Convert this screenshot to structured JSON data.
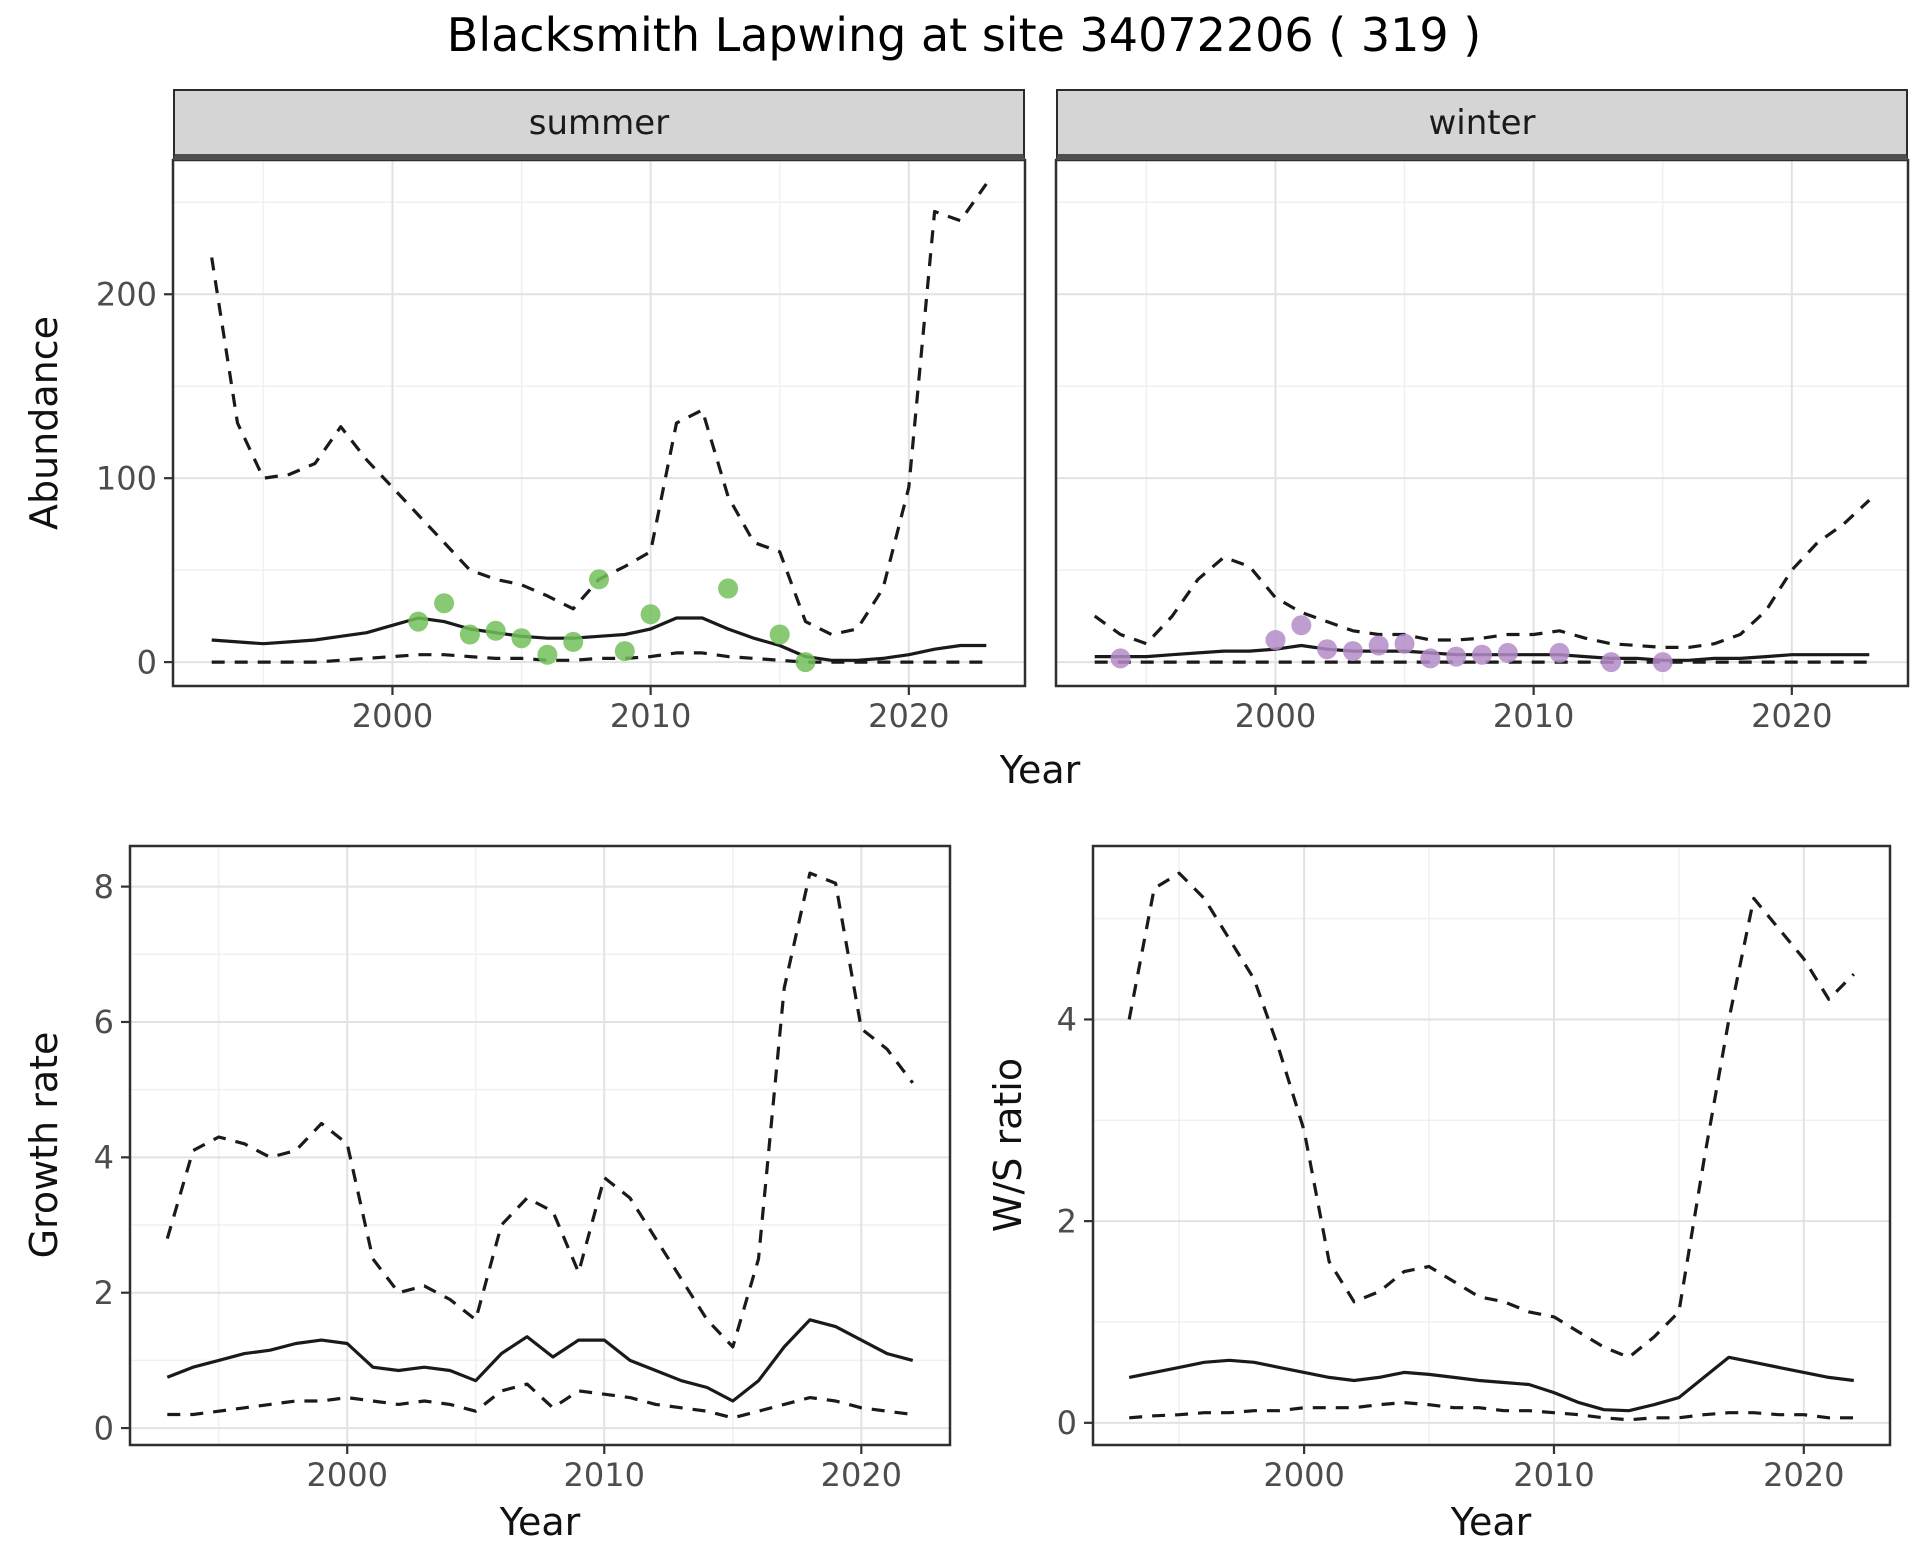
{
  "title": "Blacksmith Lapwing at site 34072206 ( 319 )",
  "colors": {
    "line": "#1a1a1a",
    "summer_points": "#73c05b",
    "winter_points": "#b48cc8",
    "strip_bg": "#d5d5d5",
    "panel_border": "#2f2f2f",
    "grid_major": "#e2e2e2",
    "grid_minor": "#f0f0f0",
    "tick_text": "#4d4d4d"
  },
  "chart_data": [
    {
      "id": "summer-abundance",
      "type": "line",
      "strip_label": "summer",
      "ylabel": "Abundance",
      "xlabel": "Year",
      "xlim": [
        1991.5,
        2024.5
      ],
      "ylim": [
        -13,
        273
      ],
      "xticks": [
        2000,
        2010,
        2020
      ],
      "yticks": [
        0,
        100,
        200
      ],
      "x": [
        1993,
        1994,
        1995,
        1996,
        1997,
        1998,
        1999,
        2000,
        2001,
        2002,
        2003,
        2004,
        2005,
        2006,
        2007,
        2008,
        2009,
        2010,
        2011,
        2012,
        2013,
        2014,
        2015,
        2016,
        2017,
        2018,
        2019,
        2020,
        2021,
        2022,
        2023
      ],
      "series": [
        {
          "name": "upper-ci",
          "dash": true,
          "values": [
            220,
            130,
            100,
            102,
            108,
            128,
            110,
            95,
            80,
            65,
            50,
            45,
            42,
            36,
            29,
            45,
            52,
            60,
            130,
            137,
            90,
            65,
            60,
            22,
            15,
            18,
            40,
            95,
            245,
            240,
            260
          ]
        },
        {
          "name": "median",
          "dash": false,
          "values": [
            12,
            11,
            10,
            11,
            12,
            14,
            16,
            20,
            24,
            22,
            18,
            16,
            14,
            13,
            13,
            14,
            15,
            18,
            24,
            24,
            18,
            13,
            9,
            3,
            1,
            1,
            2,
            4,
            7,
            9,
            9
          ]
        },
        {
          "name": "lower-ci",
          "dash": true,
          "values": [
            0,
            0,
            0,
            0,
            0,
            1,
            2,
            3,
            4,
            4,
            3,
            2,
            2,
            1,
            1,
            2,
            2,
            3,
            5,
            5,
            3,
            2,
            1,
            0,
            0,
            0,
            0,
            0,
            0,
            0,
            0
          ]
        }
      ],
      "points": {
        "name": "observed-summer-point",
        "color": "#73c05b",
        "x": [
          2001,
          2002,
          2003,
          2004,
          2005,
          2006,
          2007,
          2008,
          2009,
          2010,
          2013,
          2015,
          2016
        ],
        "y": [
          22,
          32,
          15,
          17,
          13,
          4,
          11,
          45,
          6,
          26,
          40,
          15,
          0
        ]
      }
    },
    {
      "id": "winter-abundance",
      "type": "line",
      "strip_label": "winter",
      "ylabel": "Abundance",
      "xlabel": "Year",
      "xlim": [
        1991.5,
        2024.5
      ],
      "ylim": [
        -13,
        273
      ],
      "xticks": [
        2000,
        2010,
        2020
      ],
      "yticks": [
        0,
        100,
        200
      ],
      "x": [
        1993,
        1994,
        1995,
        1996,
        1997,
        1998,
        1999,
        2000,
        2001,
        2002,
        2003,
        2004,
        2005,
        2006,
        2007,
        2008,
        2009,
        2010,
        2011,
        2012,
        2013,
        2014,
        2015,
        2016,
        2017,
        2018,
        2019,
        2020,
        2021,
        2022,
        2023
      ],
      "series": [
        {
          "name": "upper-ci",
          "dash": true,
          "values": [
            25,
            15,
            10,
            25,
            45,
            57,
            52,
            35,
            27,
            22,
            17,
            15,
            15,
            12,
            12,
            13,
            15,
            15,
            17,
            13,
            10,
            9,
            8,
            8,
            10,
            15,
            28,
            50,
            65,
            75,
            88
          ]
        },
        {
          "name": "median",
          "dash": false,
          "values": [
            3,
            3,
            3,
            4,
            5,
            6,
            6,
            7,
            9,
            7,
            6,
            6,
            6,
            5,
            4,
            4,
            4,
            4,
            4,
            3,
            2,
            2,
            1,
            1,
            2,
            2,
            3,
            4,
            4,
            4,
            4
          ]
        },
        {
          "name": "lower-ci",
          "dash": true,
          "values": [
            0,
            0,
            0,
            0,
            0,
            0,
            0,
            0,
            0,
            0,
            0,
            0,
            0,
            0,
            0,
            0,
            0,
            0,
            0,
            0,
            0,
            0,
            0,
            0,
            0,
            0,
            0,
            0,
            0,
            0,
            0
          ]
        }
      ],
      "points": {
        "name": "observed-winter-point",
        "color": "#b48cc8",
        "x": [
          1994,
          2000,
          2001,
          2002,
          2003,
          2004,
          2005,
          2006,
          2007,
          2008,
          2009,
          2011,
          2013,
          2015
        ],
        "y": [
          2,
          12,
          20,
          7,
          6,
          9,
          10,
          2,
          3,
          4,
          5,
          5,
          0,
          0
        ]
      }
    },
    {
      "id": "growth-rate",
      "type": "line",
      "strip_label": "",
      "ylabel": "Growth rate",
      "xlabel": "Year",
      "xlim": [
        1991.55,
        2023.45
      ],
      "ylim": [
        -0.25,
        8.6
      ],
      "xticks": [
        2000,
        2010,
        2020
      ],
      "yticks": [
        0,
        2,
        4,
        6,
        8
      ],
      "x": [
        1993,
        1994,
        1995,
        1996,
        1997,
        1998,
        1999,
        2000,
        2001,
        2002,
        2003,
        2004,
        2005,
        2006,
        2007,
        2008,
        2009,
        2010,
        2011,
        2012,
        2013,
        2014,
        2015,
        2016,
        2017,
        2018,
        2019,
        2020,
        2021,
        2022
      ],
      "series": [
        {
          "name": "upper-ci",
          "dash": true,
          "values": [
            2.8,
            4.1,
            4.3,
            4.2,
            4.0,
            4.1,
            4.5,
            4.2,
            2.5,
            2.0,
            2.1,
            1.9,
            1.6,
            3.0,
            3.4,
            3.2,
            2.3,
            3.7,
            3.4,
            2.8,
            2.2,
            1.6,
            1.2,
            2.5,
            6.5,
            8.2,
            8.05,
            5.9,
            5.6,
            5.1
          ]
        },
        {
          "name": "median",
          "dash": false,
          "values": [
            0.75,
            0.9,
            1.0,
            1.1,
            1.15,
            1.25,
            1.3,
            1.25,
            0.9,
            0.85,
            0.9,
            0.85,
            0.7,
            1.1,
            1.35,
            1.05,
            1.3,
            1.3,
            1.0,
            0.85,
            0.7,
            0.6,
            0.4,
            0.7,
            1.2,
            1.6,
            1.5,
            1.3,
            1.1,
            1.0
          ]
        },
        {
          "name": "lower-ci",
          "dash": true,
          "values": [
            0.2,
            0.2,
            0.25,
            0.3,
            0.35,
            0.4,
            0.4,
            0.45,
            0.4,
            0.35,
            0.4,
            0.35,
            0.25,
            0.55,
            0.65,
            0.3,
            0.55,
            0.5,
            0.45,
            0.35,
            0.3,
            0.25,
            0.15,
            0.25,
            0.35,
            0.45,
            0.4,
            0.3,
            0.25,
            0.2
          ]
        }
      ]
    },
    {
      "id": "ws-ratio",
      "type": "line",
      "strip_label": "",
      "ylabel": "W/S ratio",
      "xlabel": "Year",
      "xlim": [
        1991.55,
        2023.45
      ],
      "ylim": [
        -0.22,
        5.72
      ],
      "xticks": [
        2000,
        2010,
        2020
      ],
      "yticks": [
        0,
        2,
        4
      ],
      "x": [
        1993,
        1994,
        1995,
        1996,
        1997,
        1998,
        1999,
        2000,
        2001,
        2002,
        2003,
        2004,
        2005,
        2006,
        2007,
        2008,
        2009,
        2010,
        2011,
        2012,
        2013,
        2014,
        2015,
        2016,
        2017,
        2018,
        2019,
        2020,
        2021,
        2022
      ],
      "series": [
        {
          "name": "upper-ci",
          "dash": true,
          "values": [
            4.0,
            5.3,
            5.45,
            5.2,
            4.8,
            4.4,
            3.7,
            2.9,
            1.6,
            1.2,
            1.3,
            1.5,
            1.55,
            1.4,
            1.25,
            1.2,
            1.1,
            1.05,
            0.9,
            0.75,
            0.65,
            0.85,
            1.1,
            2.6,
            4.0,
            5.2,
            4.9,
            4.6,
            4.2,
            4.45
          ]
        },
        {
          "name": "median",
          "dash": false,
          "values": [
            0.45,
            0.5,
            0.55,
            0.6,
            0.62,
            0.6,
            0.55,
            0.5,
            0.45,
            0.42,
            0.45,
            0.5,
            0.48,
            0.45,
            0.42,
            0.4,
            0.38,
            0.3,
            0.2,
            0.13,
            0.12,
            0.18,
            0.25,
            0.45,
            0.65,
            0.6,
            0.55,
            0.5,
            0.45,
            0.42
          ]
        },
        {
          "name": "lower-ci",
          "dash": true,
          "values": [
            0.05,
            0.07,
            0.08,
            0.1,
            0.1,
            0.12,
            0.12,
            0.15,
            0.15,
            0.15,
            0.18,
            0.2,
            0.18,
            0.15,
            0.15,
            0.12,
            0.12,
            0.1,
            0.08,
            0.05,
            0.03,
            0.05,
            0.05,
            0.08,
            0.1,
            0.1,
            0.08,
            0.08,
            0.05,
            0.05
          ]
        }
      ]
    }
  ]
}
